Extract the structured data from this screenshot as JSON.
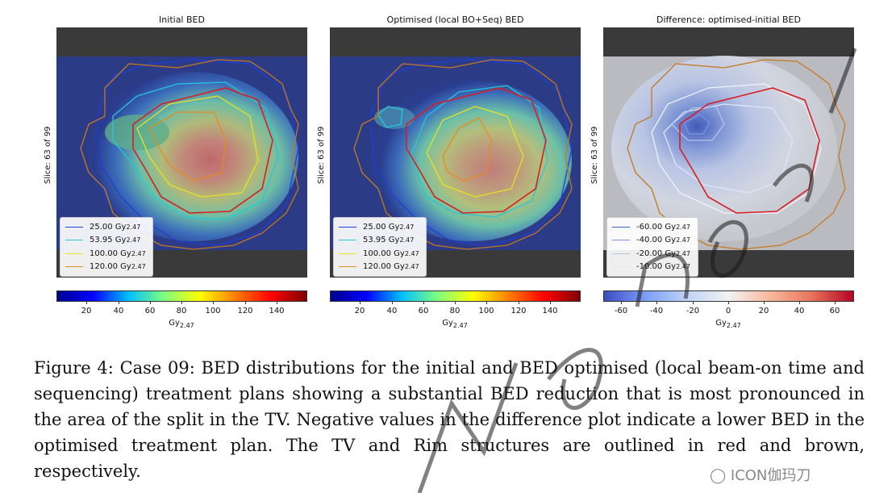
{
  "panels": [
    {
      "title": "Initial BED",
      "slice": "Slice: 63 of 99",
      "legend": [
        {
          "value": "25.00 Gy",
          "sub": "2.47",
          "color": "#1f3fd6"
        },
        {
          "value": "53.95 Gy",
          "sub": "2.47",
          "color": "#25c7d9"
        },
        {
          "value": "100.00 Gy",
          "sub": "2.47",
          "color": "#e8e21e"
        },
        {
          "value": "120.00 Gy",
          "sub": "2.47",
          "color": "#e8891e"
        }
      ],
      "ticks": [
        "20",
        "40",
        "60",
        "80",
        "100",
        "120",
        "140"
      ],
      "cb_label": "Gy",
      "cb_label_sub": "2.47"
    },
    {
      "title": "Optimised (local BO+Seq) BED",
      "slice": "Slice: 63 of 99",
      "legend": [
        {
          "value": "25.00 Gy",
          "sub": "2.47",
          "color": "#1f3fd6"
        },
        {
          "value": "53.95 Gy",
          "sub": "2.47",
          "color": "#25c7d9"
        },
        {
          "value": "100.00 Gy",
          "sub": "2.47",
          "color": "#e8e21e"
        },
        {
          "value": "120.00 Gy",
          "sub": "2.47",
          "color": "#e8891e"
        }
      ],
      "ticks": [
        "20",
        "40",
        "60",
        "80",
        "100",
        "120",
        "140"
      ],
      "cb_label": "Gy",
      "cb_label_sub": "2.47"
    },
    {
      "title": "Difference: optimised-initial BED",
      "slice": "Slice: 63 of 99",
      "legend": [
        {
          "value": "-60.00 Gy",
          "sub": "2.47",
          "color": "#3c5bd6"
        },
        {
          "value": "-40.00 Gy",
          "sub": "2.47",
          "color": "#7a95e6"
        },
        {
          "value": "-20.00 Gy",
          "sub": "2.47",
          "color": "#b3c3f0"
        },
        {
          "value": "-10.00 Gy",
          "sub": "2.47",
          "color": "#dfe6fa"
        }
      ],
      "ticks": [
        "-60",
        "-40",
        "-20",
        "0",
        "20",
        "40",
        "60"
      ],
      "cb_label": "Gy",
      "cb_label_sub": "2.47"
    }
  ],
  "caption": "Figure 4: Case 09: BED distributions for the initial and BED optimised (local beam-on time and sequencing) treatment plans showing a substantial BED reduction that is most pronounced in the area of the split in the TV. Negative values in the difference plot indicate a lower BED in the optimised treatment plan. The TV and Rim structures are outlined in red and brown, respectively.",
  "watermark": "ICON伽玛刀",
  "colors": {
    "tv": "#d81e1e",
    "rim": "#c6781e"
  }
}
